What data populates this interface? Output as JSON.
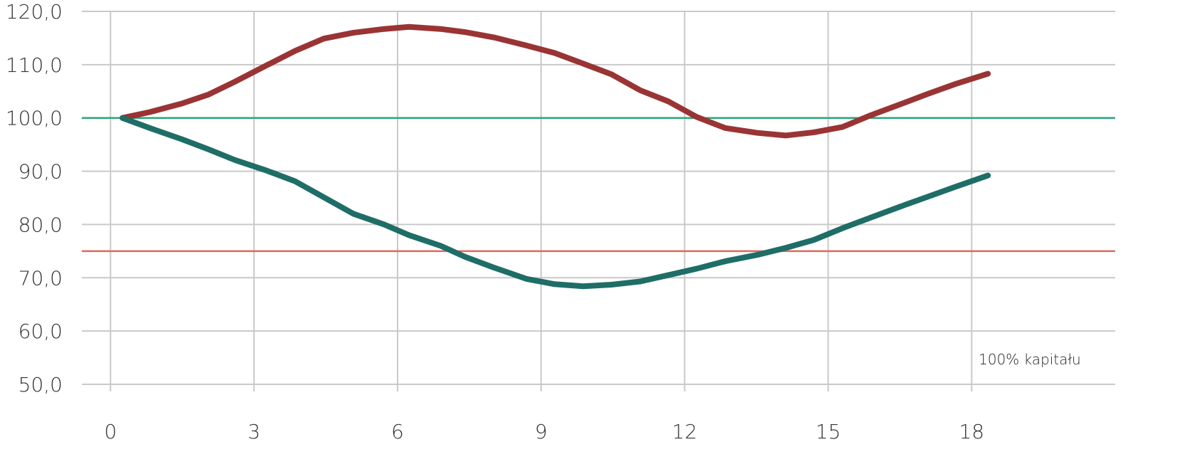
{
  "chart_data": {
    "type": "line",
    "x": [
      0.25,
      0.82,
      1.49,
      2.05,
      2.6,
      3.27,
      3.86,
      4.46,
      5.08,
      5.72,
      6.24,
      6.9,
      7.42,
      8.02,
      8.69,
      9.28,
      9.88,
      10.47,
      11.07,
      11.66,
      12.25,
      12.85,
      13.52,
      14.11,
      14.7,
      15.3,
      15.89,
      16.49,
      17.08,
      17.67,
      18.34
    ],
    "series": [
      {
        "color": "#9a3434",
        "values": [
          100,
          101.1,
          102.7,
          104.4,
          106.8,
          109.9,
          112.6,
          114.9,
          116.0,
          116.7,
          117.1,
          116.7,
          116.1,
          115.1,
          113.6,
          112.2,
          110.2,
          108.2,
          105.2,
          103.1,
          100.2,
          98.1,
          97.2,
          96.7,
          97.3,
          98.3,
          100.5,
          102.5,
          104.5,
          106.4,
          108.3
        ]
      },
      {
        "color": "#1e6e67",
        "values": [
          100,
          98.1,
          96.0,
          94.1,
          92.1,
          90.1,
          88.1,
          85.1,
          82.0,
          80.0,
          78.0,
          76.0,
          73.9,
          71.9,
          69.8,
          68.8,
          68.4,
          68.7,
          69.3,
          70.5,
          71.7,
          73.1,
          74.3,
          75.6,
          77.1,
          79.3,
          81.3,
          83.3,
          85.2,
          87.1,
          89.2
        ]
      }
    ],
    "reference_lines": [
      {
        "value": 100,
        "color": "#2aa876"
      },
      {
        "value": 75,
        "color": "#e2675e"
      }
    ],
    "annotation": "100% kapitału",
    "xlim": [
      -0.6,
      21
    ],
    "xticks": [
      0,
      3,
      6,
      9,
      12,
      15,
      18
    ],
    "ylim": [
      50,
      120
    ],
    "yticks": [
      {
        "value": 50,
        "label": "50,0"
      },
      {
        "value": 60,
        "label": "60,0"
      },
      {
        "value": 70,
        "label": "70,0"
      },
      {
        "value": 80,
        "label": "80,0"
      },
      {
        "value": 90,
        "label": "90,0"
      },
      {
        "value": 100,
        "label": "100,0"
      },
      {
        "value": 110,
        "label": "110,0"
      },
      {
        "value": 120,
        "label": "120,0"
      }
    ],
    "grid": true
  }
}
